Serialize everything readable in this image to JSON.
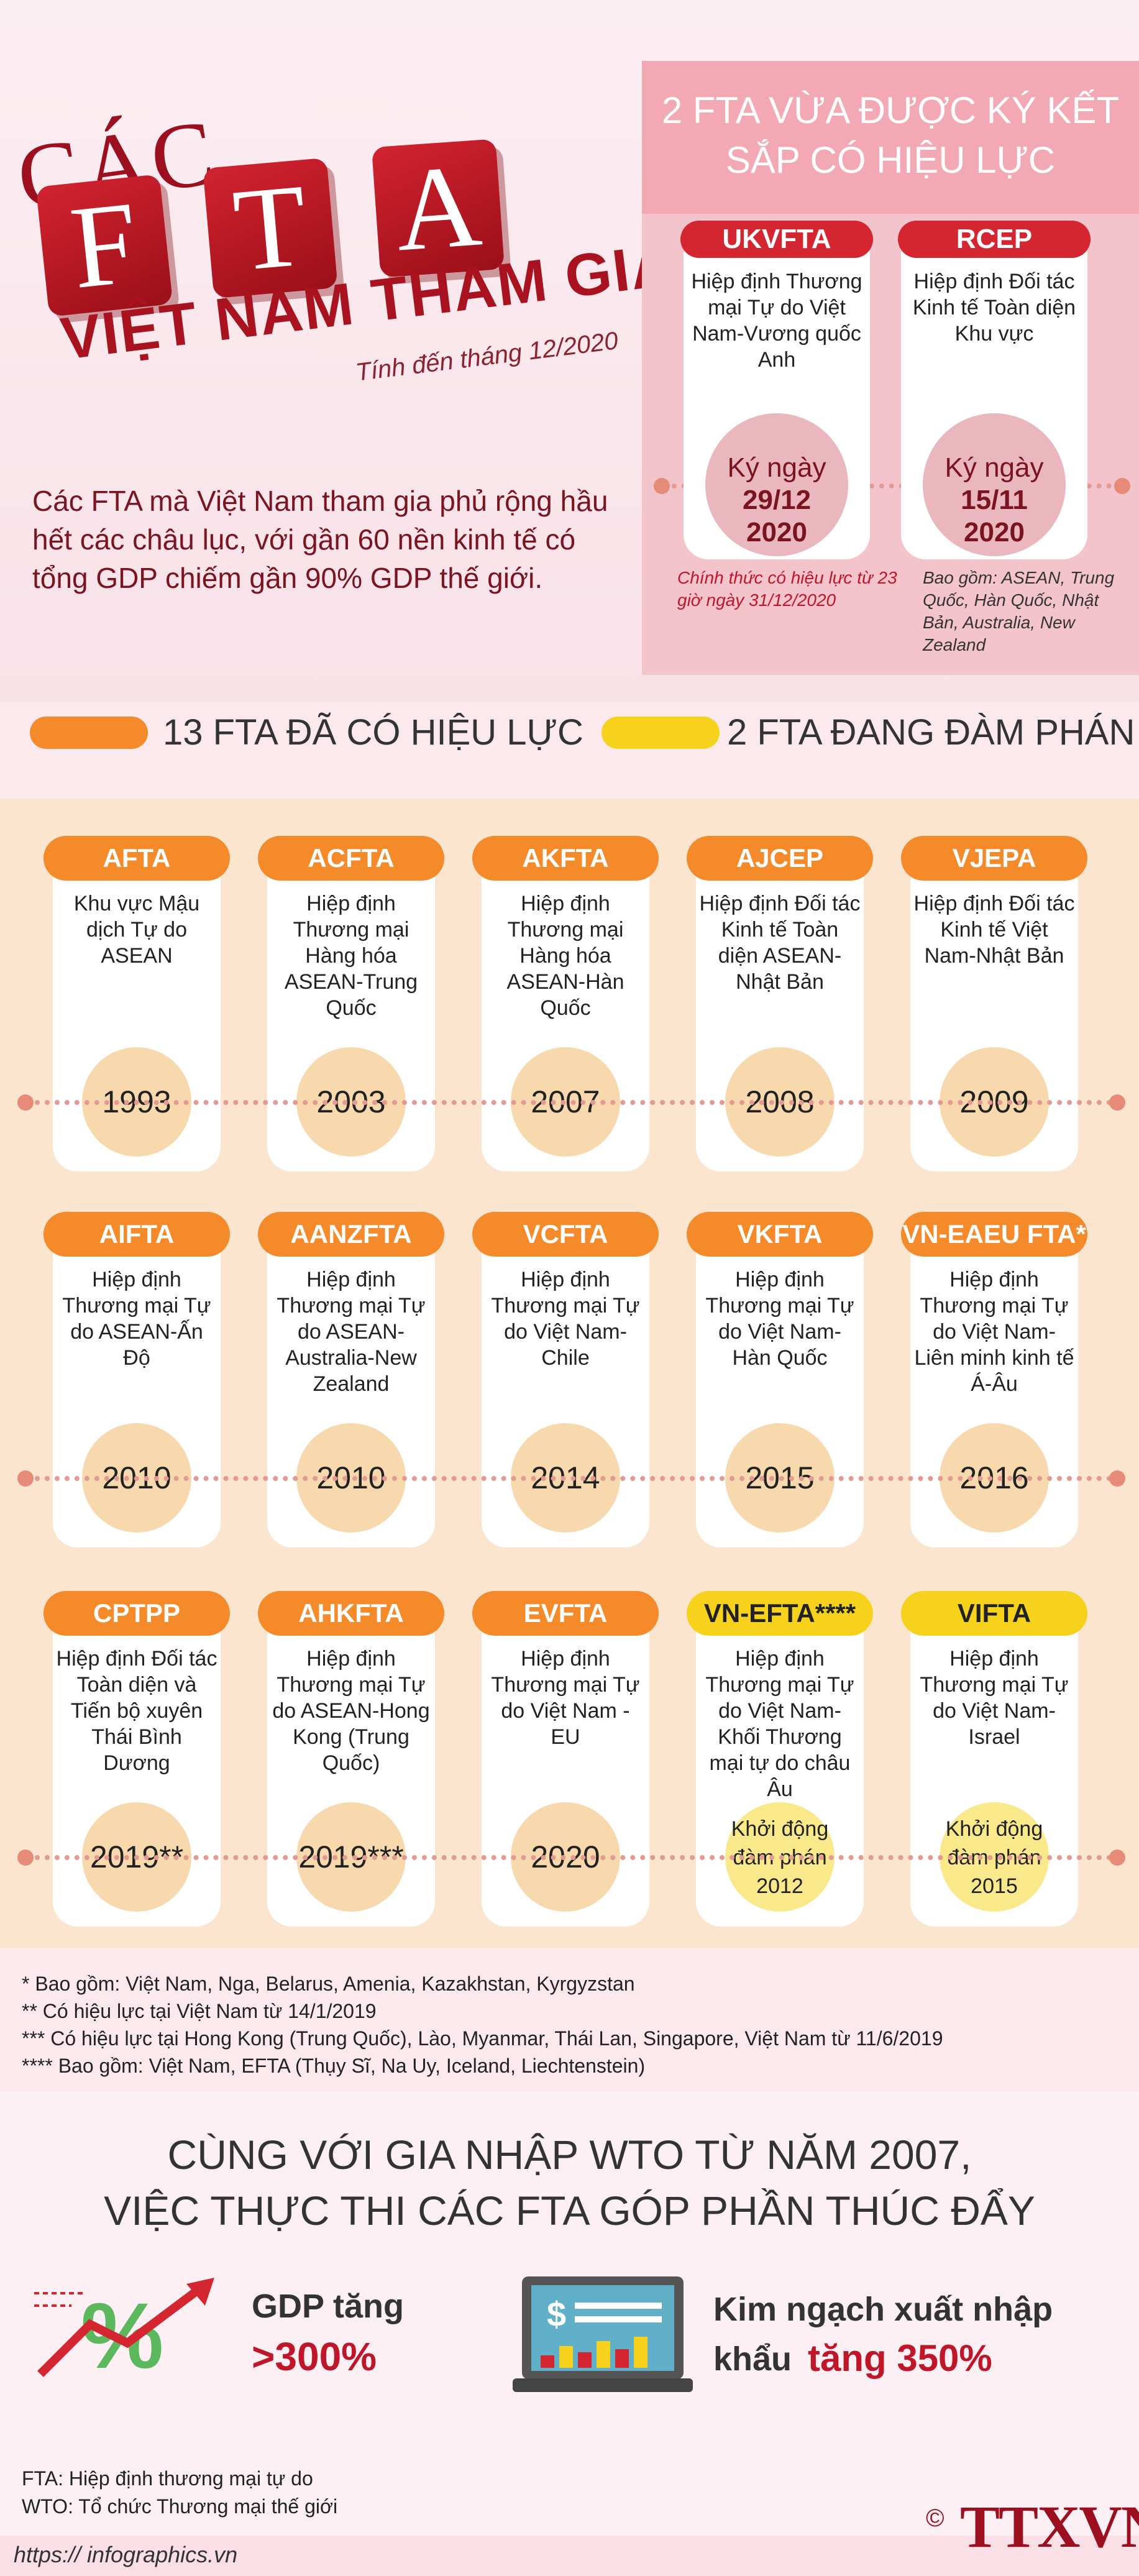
{
  "header": {
    "title_cac": "CÁC",
    "title_letters": [
      "F",
      "T",
      "A"
    ],
    "subtitle": "VIỆT NAM THAM GIA",
    "date": "Tính đến tháng 12/2020",
    "intro": "Các FTA mà Việt Nam tham gia phủ rộng hầu hết các châu lục, với gần 60 nền kinh tế có tổng GDP chiếm gần 90% GDP thế giới."
  },
  "signed": {
    "title_line1": "2 FTA VỪA ĐƯỢC KÝ KẾT",
    "title_line2": "SẮP CÓ HIỆU LỰC",
    "items": [
      {
        "name": "UKVFTA",
        "desc": "Hiệp định Thương mại Tự do Việt Nam-Vương quốc Anh",
        "sign_label": "Ký ngày",
        "sign_date": "29/12",
        "sign_year": "2020",
        "note": "Chính thức có hiệu lực từ 23 giờ ngày 31/12/2020"
      },
      {
        "name": "RCEP",
        "desc": "Hiệp định Đối tác Kinh tế Toàn diện Khu vực",
        "sign_label": "Ký ngày",
        "sign_date": "15/11",
        "sign_year": "2020",
        "note": "Bao gồm: ASEAN, Trung Quốc, Hàn Quốc, Nhật Bản, Australia, New Zealand"
      }
    ]
  },
  "legend": {
    "effective": "13 FTA ĐÃ CÓ HIỆU LỰC",
    "negotiating": "2 FTA ĐANG ĐÀM PHÁN",
    "effective_color": "#f58a2a",
    "negotiating_color": "#f7d21c"
  },
  "ftas": [
    {
      "name": "AFTA",
      "desc": "Khu vực Mậu dịch Tự do ASEAN",
      "year": "1993",
      "status": "effective"
    },
    {
      "name": "ACFTA",
      "desc": "Hiệp định Thương mại Hàng hóa ASEAN-Trung Quốc",
      "year": "2003",
      "status": "effective"
    },
    {
      "name": "AKFTA",
      "desc": "Hiệp định Thương mại Hàng hóa ASEAN-Hàn Quốc",
      "year": "2007",
      "status": "effective"
    },
    {
      "name": "AJCEP",
      "desc": "Hiệp định Đối tác Kinh tế Toàn diện ASEAN-Nhật Bản",
      "year": "2008",
      "status": "effective"
    },
    {
      "name": "VJEPA",
      "desc": "Hiệp định Đối tác Kinh tế Việt Nam-Nhật Bản",
      "year": "2009",
      "status": "effective"
    },
    {
      "name": "AIFTA",
      "desc": "Hiệp định Thương mại Tự do ASEAN-Ấn Độ",
      "year": "2010",
      "status": "effective"
    },
    {
      "name": "AANZFTA",
      "desc": "Hiệp định Thương mại Tự do ASEAN-Australia-New Zealand",
      "year": "2010",
      "status": "effective"
    },
    {
      "name": "VCFTA",
      "desc": "Hiệp định Thương mại Tự do Việt Nam-Chile",
      "year": "2014",
      "status": "effective"
    },
    {
      "name": "VKFTA",
      "desc": "Hiệp định Thương mại Tự do Việt Nam-Hàn Quốc",
      "year": "2015",
      "status": "effective"
    },
    {
      "name": "VN-EAEU FTA*",
      "desc": "Hiệp định Thương mại Tự do Việt Nam-Liên minh kinh tế Á-Âu",
      "year": "2016",
      "status": "effective"
    },
    {
      "name": "CPTPP",
      "desc": "Hiệp định Đối tác Toàn diện và Tiến bộ xuyên Thái Bình Dương",
      "year": "2019**",
      "status": "effective"
    },
    {
      "name": "AHKFTA",
      "desc": "Hiệp định Thương mại Tự do ASEAN-Hong Kong (Trung Quốc)",
      "year": "2019***",
      "status": "effective"
    },
    {
      "name": "EVFTA",
      "desc": "Hiệp định Thương mại Tự do Việt Nam - EU",
      "year": "2020",
      "status": "effective"
    },
    {
      "name": "VN-EFTA****",
      "desc": "Hiệp định Thương mại Tự do Việt Nam-Khối Thương mại tự do châu Âu",
      "year": "Khởi động đàm phán 2012",
      "status": "negotiating"
    },
    {
      "name": "VIFTA",
      "desc": "Hiệp định Thương mại Tự do Việt Nam-Israel",
      "year": "Khởi động đàm phán 2015",
      "status": "negotiating"
    }
  ],
  "footnotes": [
    "* Bao gồm: Việt Nam, Nga, Belarus, Amenia, Kazakhstan, Kyrgyzstan",
    "** Có hiệu lực tại Việt Nam từ 14/1/2019",
    "*** Có hiệu lực tại Hong Kong (Trung Quốc), Lào, Myanmar, Thái Lan, Singapore, Việt Nam từ 11/6/2019",
    "**** Bao gồm: Việt Nam, EFTA (Thụy Sĩ, Na Uy, Iceland, Liechtenstein)"
  ],
  "bottom": {
    "heading_line1": "CÙNG VỚI GIA NHẬP WTO TỪ NĂM 2007,",
    "heading_line2": "VIỆC THỰC THI CÁC FTA GÓP PHẦN THÚC ĐẨY",
    "gdp_label": "GDP  tăng",
    "gdp_value": ">300%",
    "trade_label_1": "Kim ngạch xuất nhập",
    "trade_label_2": "khẩu",
    "trade_value": "tăng 350%",
    "glossary_1": "FTA: Hiệp định thương mại tự do",
    "glossary_2": "WTO: Tổ chức Thương mại thế giới",
    "source": "https:// infographics.vn",
    "logo": "TTXVN",
    "copyright": "©"
  }
}
